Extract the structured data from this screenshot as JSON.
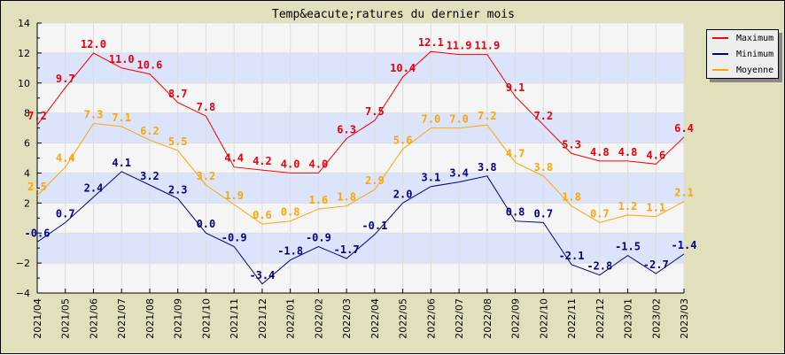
{
  "chart_data": {
    "type": "line",
    "title": "Temp&eacute;ratures du dernier mois",
    "xlabel": "",
    "ylabel": "",
    "ylim": [
      -4,
      14
    ],
    "yticks": [
      14,
      12,
      10,
      8,
      6,
      4,
      2,
      -2,
      -4
    ],
    "grid": true,
    "legend_position": "right",
    "categories": [
      "2021/04",
      "2021/05",
      "2021/06",
      "2021/07",
      "2021/08",
      "2021/09",
      "2021/10",
      "2021/11",
      "2021/12",
      "2022/01",
      "2022/02",
      "2022/03",
      "2022/04",
      "2022/05",
      "2022/06",
      "2022/07",
      "2022/08",
      "2022/09",
      "2022/10",
      "2022/11",
      "2022/12",
      "2023/01",
      "2023/02",
      "2023/03"
    ],
    "series": [
      {
        "name": "Maximum",
        "color": "#ff0000",
        "labelColor": "#e8000b",
        "values": [
          7.2,
          9.7,
          12.0,
          11.0,
          10.6,
          8.7,
          7.8,
          4.4,
          4.2,
          4.0,
          4.0,
          6.3,
          7.5,
          10.4,
          12.1,
          11.9,
          11.9,
          9.1,
          7.2,
          5.3,
          4.8,
          4.8,
          4.6,
          6.4
        ]
      },
      {
        "name": "Minimum",
        "color": "#000080",
        "labelColor": "#000080",
        "values": [
          -0.6,
          0.7,
          2.4,
          4.1,
          3.2,
          2.3,
          0.0,
          -0.9,
          -3.4,
          -1.8,
          -0.9,
          -1.7,
          -0.1,
          2.0,
          3.1,
          3.4,
          3.8,
          0.8,
          0.7,
          -2.1,
          -2.8,
          -1.5,
          -2.7,
          -1.4
        ]
      },
      {
        "name": "Moyenne",
        "color": "#ffa500",
        "labelColor": "#ffa500",
        "values": [
          2.5,
          4.4,
          7.3,
          7.1,
          6.2,
          5.5,
          3.2,
          1.9,
          0.6,
          0.8,
          1.6,
          1.8,
          2.9,
          5.6,
          7.0,
          7.0,
          7.2,
          4.7,
          3.8,
          1.8,
          0.7,
          1.2,
          1.1,
          2.1
        ]
      }
    ]
  },
  "legend": {
    "items": [
      {
        "label": "Maximum",
        "color": "#ff0000"
      },
      {
        "label": "Minimum",
        "color": "#000080"
      },
      {
        "label": "Moyenne",
        "color": "#ffa500"
      }
    ]
  },
  "colors": {
    "background": "#e2e0bc",
    "plot_bg": "#f5f5f5",
    "band": "#dce4fc",
    "grid": "#dddddd"
  }
}
